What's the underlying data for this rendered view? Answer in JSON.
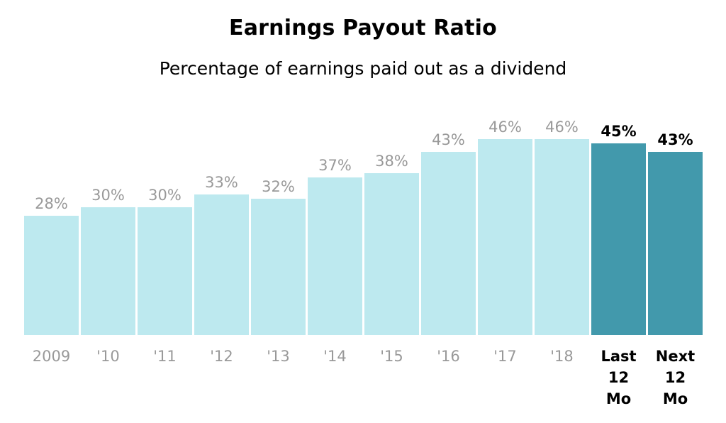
{
  "chart_data": {
    "type": "bar",
    "title": "Earnings Payout Ratio",
    "subtitle": "Percentage of earnings paid out as a dividend",
    "categories": [
      "2009",
      "'10",
      "'11",
      "'12",
      "'13",
      "'14",
      "'15",
      "'16",
      "'17",
      "'18",
      "Last 12 Mo",
      "Next 12 Mo"
    ],
    "category_lines": [
      [
        "2009"
      ],
      [
        "'10"
      ],
      [
        "'11"
      ],
      [
        "'12"
      ],
      [
        "'13"
      ],
      [
        "'14"
      ],
      [
        "'15"
      ],
      [
        "'16"
      ],
      [
        "'17"
      ],
      [
        "'18"
      ],
      [
        "Last",
        "12",
        "Mo"
      ],
      [
        "Next",
        "12",
        "Mo"
      ]
    ],
    "values": [
      28,
      30,
      30,
      33,
      32,
      37,
      38,
      43,
      46,
      46,
      45,
      43
    ],
    "value_labels": [
      "28%",
      "30%",
      "30%",
      "33%",
      "32%",
      "37%",
      "38%",
      "43%",
      "46%",
      "46%",
      "45%",
      "43%"
    ],
    "highlighted": [
      false,
      false,
      false,
      false,
      false,
      false,
      false,
      false,
      false,
      false,
      true,
      true
    ],
    "ylim": [
      0,
      50
    ],
    "grid": false,
    "legend": "none",
    "colors": {
      "bar": "#bde9ef",
      "bar_highlight": "#4299ac",
      "label": "#999999",
      "label_highlight": "#000000"
    }
  }
}
